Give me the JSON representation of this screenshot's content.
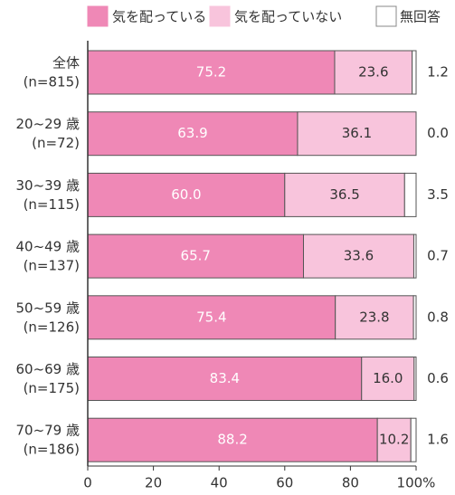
{
  "chart_data": {
    "type": "stacked-bar-horizontal",
    "categories": [
      "全体",
      "20~29 歳",
      "30~39 歳",
      "40~49 歳",
      "50~59 歳",
      "60~69 歳",
      "70~79 歳"
    ],
    "sample_sizes": [
      "(n=815)",
      "(n=72)",
      "(n=115)",
      "(n=137)",
      "(n=126)",
      "(n=175)",
      "(n=186)"
    ],
    "series": [
      {
        "name": "気を配っている",
        "color": "#ef88b6",
        "values": [
          75.2,
          63.9,
          60.0,
          65.7,
          75.4,
          83.4,
          88.2
        ],
        "value_labels": [
          "75.2",
          "63.9",
          "60.0",
          "65.7",
          "75.4",
          "83.4",
          "88.2"
        ]
      },
      {
        "name": "気を配っていない",
        "color": "#f8c4dc",
        "values": [
          23.6,
          36.1,
          36.5,
          33.6,
          23.8,
          16.0,
          10.2
        ],
        "value_labels": [
          "23.6",
          "36.1",
          "36.5",
          "33.6",
          "23.8",
          "16.0",
          "10.2"
        ]
      },
      {
        "name": "無回答",
        "color": "#ffffff",
        "values": [
          1.2,
          0.0,
          3.5,
          0.7,
          0.8,
          0.6,
          1.6
        ],
        "value_labels": [
          "1.2",
          "0.0",
          "3.5",
          "0.7",
          "0.8",
          "0.6",
          "1.6"
        ]
      }
    ],
    "xlim": [
      0,
      100
    ],
    "xticks": [
      0,
      20,
      40,
      60,
      80,
      {
        "value": 100,
        "label": "100%"
      }
    ]
  }
}
